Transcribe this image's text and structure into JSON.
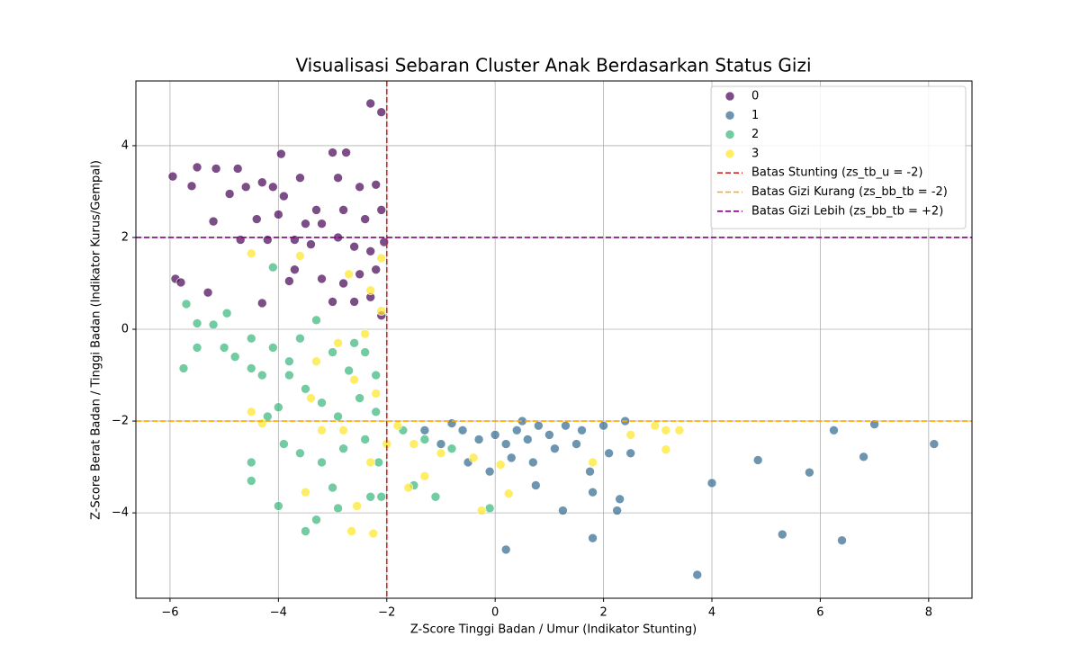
{
  "chart_data": {
    "type": "scatter",
    "title": "Visualisasi Sebaran Cluster Anak Berdasarkan Status Gizi",
    "xlabel": "Z-Score Tinggi Badan / Umur (Indikator Stunting)",
    "ylabel": "Z-Score Berat Badan / Tinggi Badan (Indikator Kurus/Gempal)",
    "xlim": [
      -6.63,
      8.8
    ],
    "ylim": [
      -5.86,
      5.41
    ],
    "xticks": [
      {
        "value": -6,
        "label": "−6"
      },
      {
        "value": -4,
        "label": "−4"
      },
      {
        "value": -2,
        "label": "−2"
      },
      0,
      2,
      4,
      6,
      8
    ],
    "yticks": [
      {
        "value": -4,
        "label": "−4"
      },
      {
        "value": -2,
        "label": "−2"
      },
      0,
      2,
      4
    ],
    "grid": true,
    "legend": "upper right",
    "series": [
      {
        "name": "0",
        "color": "#440154",
        "x": [
          -5.95,
          -5.5,
          -5.6,
          -5.15,
          -4.75,
          -4.9,
          -4.6,
          -4.3,
          -4.1,
          -3.95,
          -3.6,
          -3.9,
          -3.3,
          -3.0,
          -2.75,
          -2.3,
          -2.1,
          -2.9,
          -2.5,
          -2.2,
          -3.5,
          -3.2,
          -2.8,
          -2.4,
          -2.1,
          -4.0,
          -4.4,
          -5.2,
          -4.7,
          -4.2,
          -3.7,
          -3.4,
          -2.9,
          -2.6,
          -2.3,
          -2.05,
          -3.7,
          -3.8,
          -5.9,
          -5.8,
          -5.3,
          -4.3,
          -3.2,
          -2.8,
          -2.5,
          -2.3,
          -2.1,
          -2.6,
          -3.0,
          -2.2
        ],
        "y": [
          3.33,
          3.53,
          3.12,
          3.5,
          3.5,
          2.95,
          3.1,
          3.2,
          3.1,
          3.82,
          3.3,
          2.9,
          2.6,
          3.85,
          3.85,
          4.92,
          4.73,
          3.3,
          3.1,
          3.15,
          2.3,
          2.3,
          2.6,
          2.4,
          2.6,
          2.5,
          2.4,
          2.35,
          1.95,
          1.95,
          1.95,
          1.85,
          2.0,
          1.8,
          1.7,
          1.9,
          1.3,
          1.05,
          1.1,
          1.02,
          0.8,
          0.57,
          1.1,
          1.0,
          1.2,
          0.7,
          0.3,
          0.6,
          0.6,
          1.3
        ]
      },
      {
        "name": "1",
        "color": "#31688e",
        "x": [
          -1.0,
          -0.6,
          -0.3,
          0,
          0.2,
          0.4,
          0.6,
          0.8,
          1.0,
          1.3,
          1.6,
          2.0,
          2.4,
          0.3,
          0.7,
          1.1,
          -0.5,
          -0.1,
          0.75,
          1.25,
          1.8,
          1.75,
          2.3,
          2.25,
          0.2,
          1.8,
          3.73,
          4.0,
          4.85,
          5.3,
          5.8,
          6.25,
          6.4,
          6.8,
          7.0,
          8.1,
          2.5,
          2.1,
          1.5,
          -1.3,
          0.5,
          -0.8
        ],
        "y": [
          -2.5,
          -2.2,
          -2.4,
          -2.3,
          -2.5,
          -2.2,
          -2.4,
          -2.1,
          -2.3,
          -2.1,
          -2.2,
          -2.1,
          -2.0,
          -2.8,
          -2.9,
          -2.6,
          -2.9,
          -3.1,
          -3.4,
          -3.95,
          -3.55,
          -3.1,
          -3.7,
          -3.95,
          -4.8,
          -4.55,
          -5.35,
          -3.35,
          -2.85,
          -4.47,
          -3.12,
          -2.2,
          -4.6,
          -2.78,
          -2.07,
          -2.5,
          -2.7,
          -2.7,
          -2.5,
          -2.2,
          -2.0,
          -2.05
        ]
      },
      {
        "name": "2",
        "color": "#35b779",
        "x": [
          -5.7,
          -5.5,
          -5.2,
          -4.95,
          -5.75,
          -5.5,
          -5.0,
          -4.8,
          -4.5,
          -4.5,
          -4.1,
          -4.1,
          -4.3,
          -3.8,
          -3.6,
          -3.3,
          -3.0,
          -2.7,
          -2.4,
          -2.2,
          -3.5,
          -3.2,
          -2.9,
          -2.5,
          -2.2,
          -4.0,
          -3.9,
          -3.6,
          -3.2,
          -2.8,
          -2.4,
          -2.15,
          -4.5,
          -4.5,
          -4.0,
          -3.5,
          -3.3,
          -3.0,
          -2.9,
          -2.3,
          -2.1,
          -1.1,
          -1.5,
          -1.3,
          -1.7,
          -0.8,
          -0.1,
          -4.2,
          -3.8,
          -2.6
        ],
        "y": [
          0.55,
          0.13,
          0.1,
          0.35,
          -0.85,
          -0.4,
          -0.4,
          -0.6,
          -0.85,
          -0.2,
          1.35,
          -0.4,
          -1.0,
          -0.7,
          -0.2,
          0.2,
          -0.5,
          -0.9,
          -0.5,
          -1.0,
          -1.3,
          -1.6,
          -1.9,
          -1.5,
          -1.8,
          -1.7,
          -2.5,
          -2.7,
          -2.9,
          -2.6,
          -2.4,
          -2.9,
          -2.9,
          -3.3,
          -3.85,
          -4.4,
          -4.15,
          -3.45,
          -3.9,
          -3.65,
          -3.65,
          -3.65,
          -3.4,
          -2.4,
          -2.2,
          -2.6,
          -3.9,
          -1.9,
          -1.0,
          -0.3
        ]
      },
      {
        "name": "3",
        "color": "#fde725",
        "x": [
          -4.5,
          -3.6,
          -2.7,
          -2.3,
          -2.1,
          -2.4,
          -2.9,
          -3.3,
          -2.6,
          -2.2,
          -4.5,
          -4.3,
          -3.4,
          -3.2,
          -2.8,
          -3.5,
          -2.55,
          -2.65,
          -2.25,
          -1.6,
          -1.3,
          -1.5,
          -1.0,
          -0.4,
          0.1,
          -0.25,
          0.25,
          1.8,
          2.5,
          2.95,
          3.15,
          3.15,
          3.4,
          -2.0,
          -1.8,
          -2.1,
          -2.3
        ],
        "y": [
          1.65,
          1.6,
          1.2,
          0.85,
          1.55,
          -0.1,
          -0.3,
          -0.7,
          -1.1,
          -1.4,
          -1.8,
          -2.05,
          -1.5,
          -2.2,
          -2.2,
          -3.55,
          -3.85,
          -4.4,
          -4.45,
          -3.45,
          -3.2,
          -2.5,
          -2.7,
          -2.8,
          -2.95,
          -3.95,
          -3.58,
          -2.9,
          -2.3,
          -2.1,
          -2.62,
          -2.2,
          -2.2,
          -2.5,
          -2.1,
          0.4,
          -2.9
        ]
      }
    ],
    "reference_lines": [
      {
        "name": "Batas Stunting (zs_tb_u = -2)",
        "color": "#d62728",
        "orientation": "vertical",
        "value": -2
      },
      {
        "name": "Batas Gizi Kurang (zs_bb_tb = -2)",
        "color": "#ffa500",
        "orientation": "horizontal",
        "value": -2
      },
      {
        "name": "Batas Gizi Lebih (zs_bb_tb = +2)",
        "color": "#800080",
        "orientation": "horizontal",
        "value": 2
      }
    ]
  }
}
